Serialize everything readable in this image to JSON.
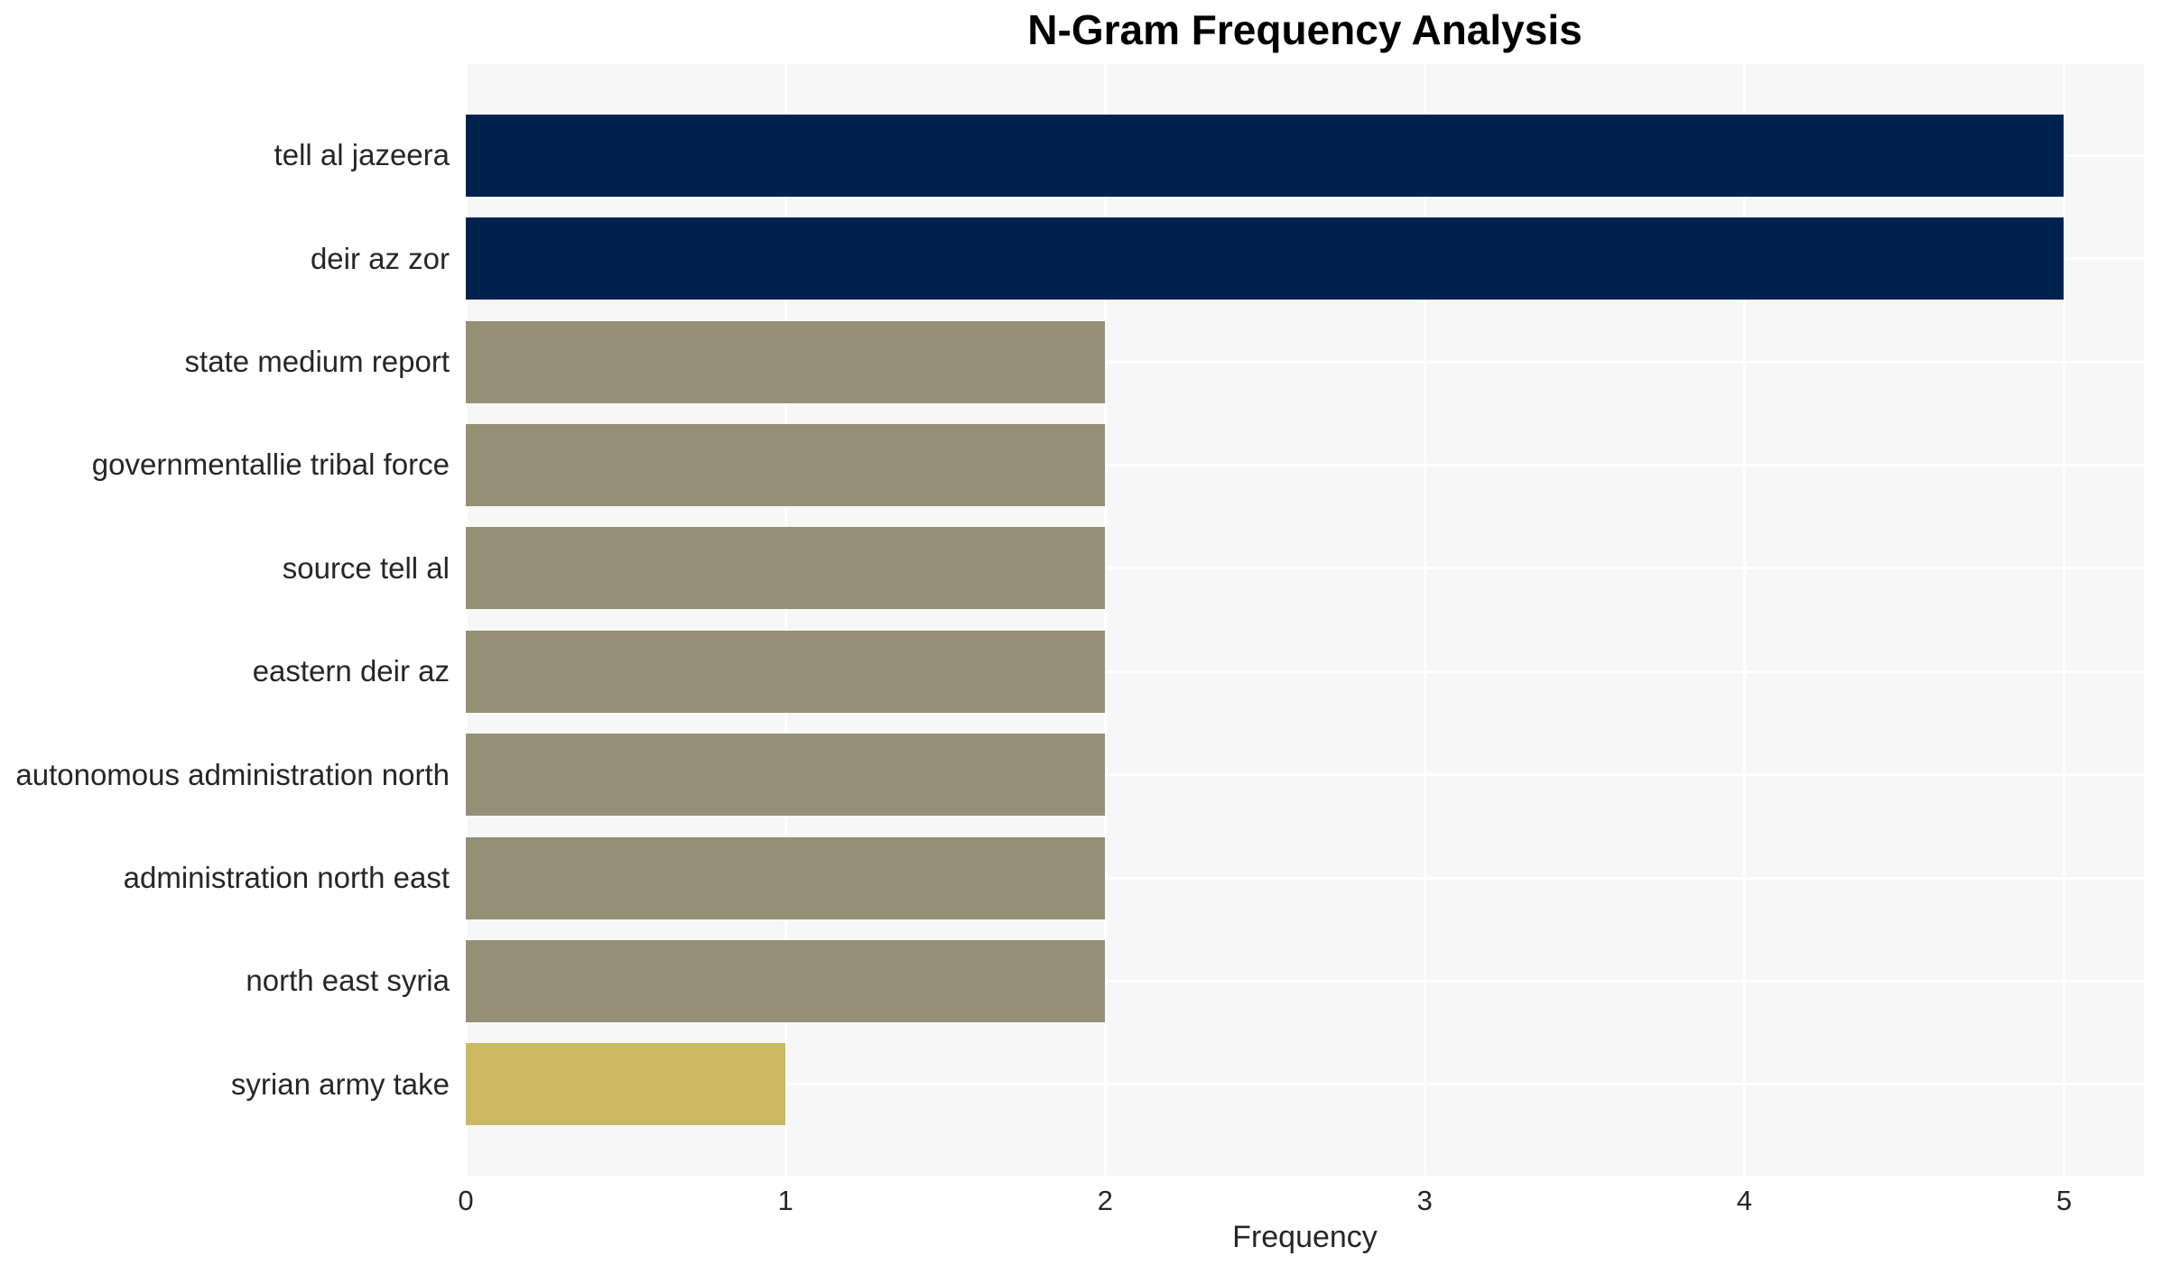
{
  "chart_data": {
    "type": "bar",
    "orientation": "horizontal",
    "title": "N-Gram Frequency Analysis",
    "xlabel": "Frequency",
    "ylabel": "",
    "categories": [
      "tell al jazeera",
      "deir az zor",
      "state medium report",
      "governmentallie tribal force",
      "source tell al",
      "eastern deir az",
      "autonomous administration north",
      "administration north east",
      "north east syria",
      "syrian army take"
    ],
    "values": [
      5,
      5,
      2,
      2,
      2,
      2,
      2,
      2,
      2,
      1
    ],
    "bar_colors": [
      "#00224e",
      "#00224e",
      "#948f75",
      "#948f75",
      "#948f75",
      "#948f75",
      "#948f75",
      "#948f75",
      "#948f75",
      "#cab863"
    ],
    "xticks": [
      0,
      1,
      2,
      3,
      4,
      5
    ],
    "xlim": [
      0,
      5.25
    ],
    "grid": true,
    "legend": false,
    "plot_bg_color": "#f7f7f7",
    "grid_color": "#ffffff",
    "page_bg_color": "#ffffff",
    "title_color": "#000000",
    "label_color": "#262626"
  }
}
